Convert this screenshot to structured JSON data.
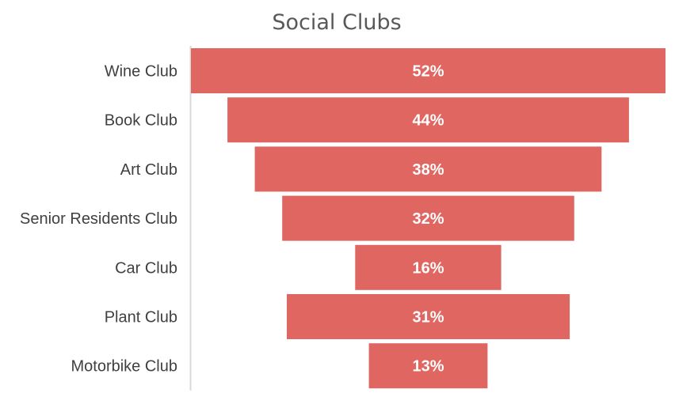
{
  "chart_data": {
    "type": "bar",
    "orientation": "horizontal-funnel",
    "title": "Social Clubs",
    "categories": [
      "Wine Club",
      "Book Club",
      "Art Club",
      "Senior Residents Club",
      "Car Club",
      "Plant Club",
      "Motorbike Club"
    ],
    "values": [
      52,
      44,
      38,
      32,
      16,
      31,
      13
    ],
    "data_labels": [
      "52%",
      "44%",
      "38%",
      "32%",
      "16%",
      "31%",
      "13%"
    ],
    "xlim": [
      0,
      52
    ],
    "grid": false,
    "legend": "none",
    "colors": {
      "bar": "#e06661",
      "axis": "#d9d9d9",
      "label": "#404040",
      "title": "#595959",
      "data_label": "#ffffff"
    }
  }
}
